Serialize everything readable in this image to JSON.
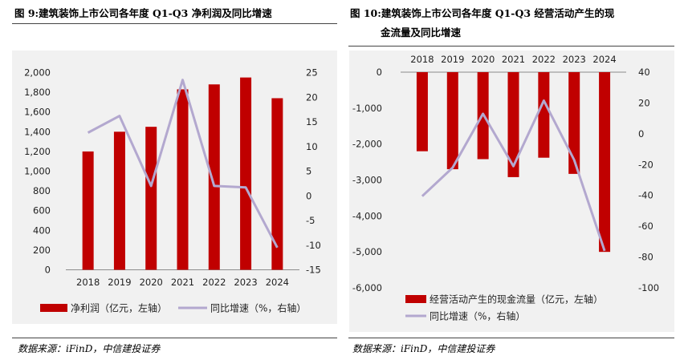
{
  "figure1": {
    "title": "图 9:建筑装饰上市公司各年度 Q1-Q3 净利润及同比增速",
    "source": "数据来源：iFinD，中信建投证券"
  },
  "figure2": {
    "title_line1": "图 10:建筑装饰上市公司各年度 Q1-Q3 经营活动产生的现",
    "title_line2": "金流量及同比增速",
    "source": "数据来源：iFinD，中信建投证券"
  },
  "colors": {
    "bar": "#c00000",
    "line": "#b3a8cf",
    "panel": "#f1f1f1"
  },
  "chart_data": [
    {
      "type": "bar+line",
      "title": "建筑装饰上市公司各年度 Q1-Q3 净利润及同比增速",
      "categories": [
        "2018",
        "2019",
        "2020",
        "2021",
        "2022",
        "2023",
        "2024"
      ],
      "series": [
        {
          "name": "净利润（亿元，左轴）",
          "type": "bar",
          "axis": "left",
          "values": [
            1200,
            1400,
            1450,
            1830,
            1880,
            1950,
            1740
          ]
        },
        {
          "name": "同比增速（%，右轴）",
          "type": "line",
          "axis": "right",
          "values": [
            12.8,
            16.2,
            2.0,
            23.5,
            2.0,
            1.7,
            -10.5
          ]
        }
      ],
      "left_axis": {
        "min": 0,
        "max": 2000,
        "step": 200,
        "tick_labels": [
          "0",
          "200",
          "400",
          "600",
          "800",
          "1,000",
          "1,200",
          "1,400",
          "1,600",
          "1,800",
          "2,000"
        ]
      },
      "right_axis": {
        "min": -15,
        "max": 25,
        "step": 5,
        "tick_labels": [
          "-15",
          "-10",
          "-5",
          "0",
          "5",
          "10",
          "15",
          "20",
          "25"
        ]
      },
      "legend_position": "bottom",
      "grid": false
    },
    {
      "type": "bar+line",
      "title": "建筑装饰上市公司各年度 Q1-Q3 经营活动产生的现金流量及同比增速",
      "categories": [
        "2018",
        "2019",
        "2020",
        "2021",
        "2022",
        "2023",
        "2024"
      ],
      "series": [
        {
          "name": "经营活动产生的现金流量（亿元，左轴）",
          "type": "bar",
          "axis": "left",
          "values": [
            -2200,
            -2700,
            -2420,
            -2920,
            -2380,
            -2830,
            -5000
          ]
        },
        {
          "name": "同比增速（%，右轴）",
          "type": "line",
          "axis": "right",
          "values": [
            -40.5,
            -22.0,
            13.0,
            -21.0,
            21.5,
            -17.0,
            -76.0
          ]
        }
      ],
      "left_axis": {
        "min": -6000,
        "max": 0,
        "step": 1000,
        "tick_labels": [
          "-6,000",
          "-5,000",
          "-4,000",
          "-3,000",
          "-2,000",
          "-1,000",
          "0"
        ]
      },
      "right_axis": {
        "min": -100,
        "max": 40,
        "step": 20,
        "tick_labels": [
          "-100",
          "-80",
          "-60",
          "-40",
          "-20",
          "0",
          "20",
          "40"
        ]
      },
      "category_axis_position": "top",
      "legend_position": "bottom",
      "grid": false
    }
  ]
}
